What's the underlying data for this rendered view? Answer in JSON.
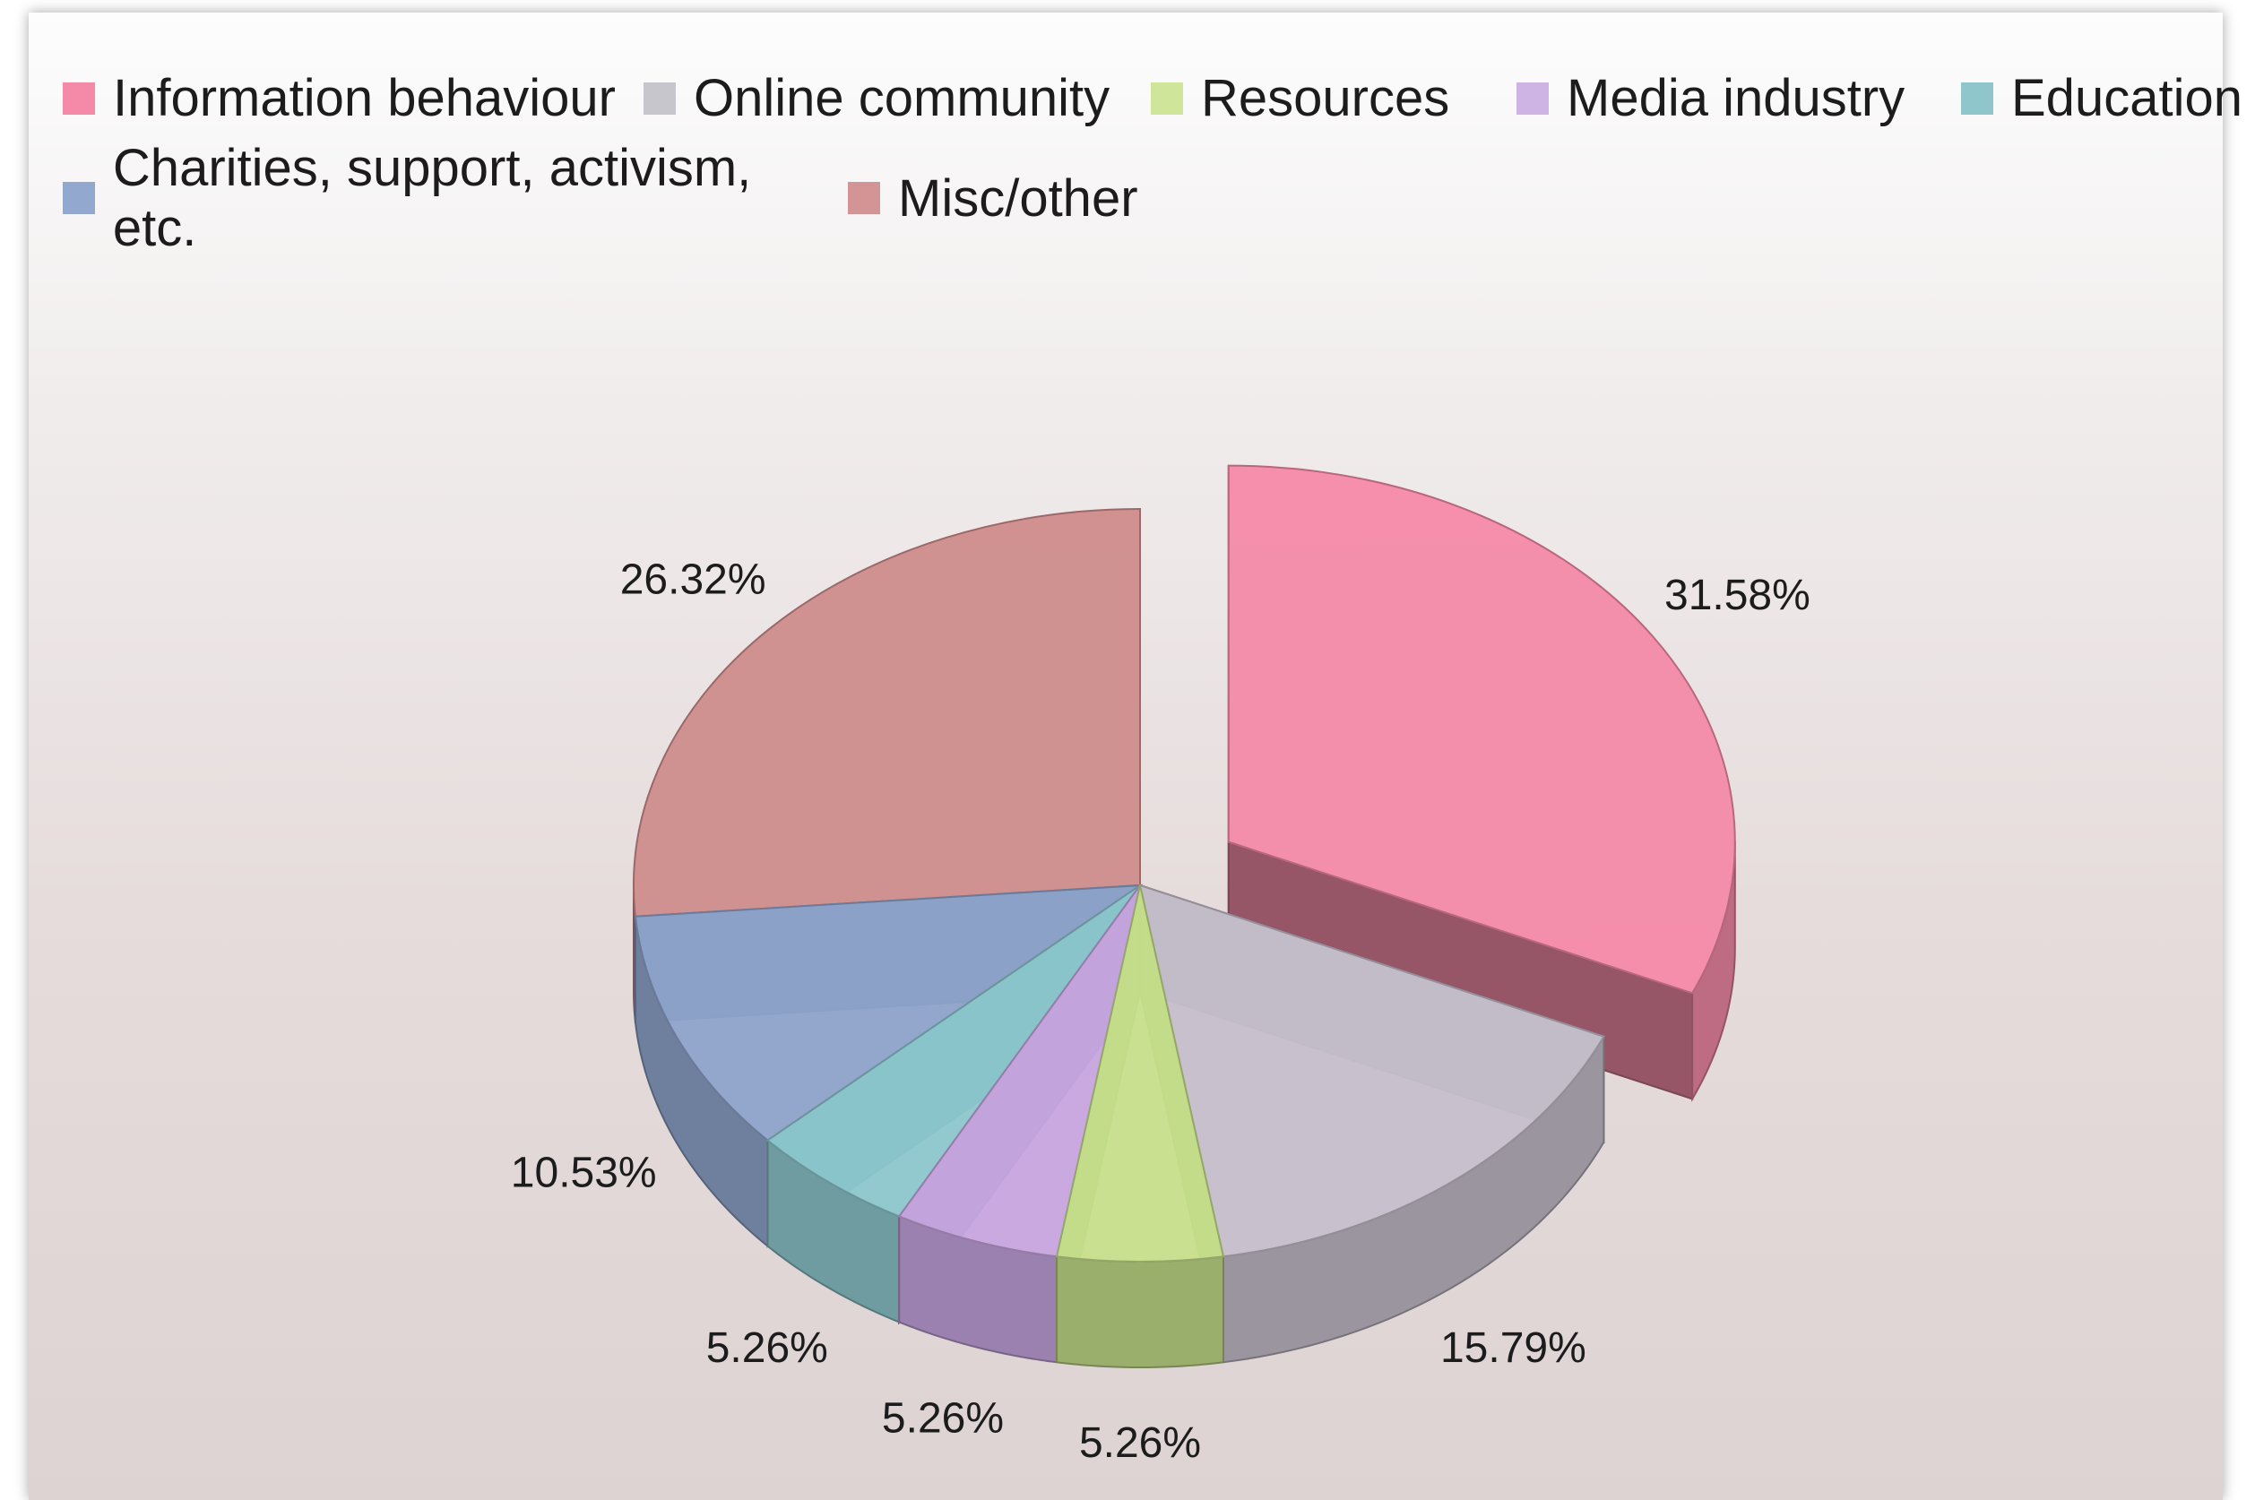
{
  "chart_data": {
    "type": "pie",
    "variant": "3d-exploded",
    "legend_placement": "top",
    "slices": [
      {
        "label": "Information behaviour",
        "value": 31.58,
        "label_text": "31.58%",
        "color": "#f48aa8",
        "exploded": true
      },
      {
        "label": "Online community",
        "value": 15.79,
        "label_text": "15.79%",
        "color": "#c6bfcc"
      },
      {
        "label": "Resources",
        "value": 5.26,
        "label_text": "5.26%",
        "color": "#c7e08c"
      },
      {
        "label": "Media industry",
        "value": 5.26,
        "label_text": "5.26%",
        "color": "#c7a6e0"
      },
      {
        "label": "Education",
        "value": 5.26,
        "label_text": "5.26%",
        "color": "#8dc8cf"
      },
      {
        "label": "Charities, support, activism, etc.",
        "value": 10.53,
        "label_text": "10.53%",
        "color": "#8ea4cc"
      },
      {
        "label": "Misc/other",
        "value": 26.32,
        "label_text": "26.32%",
        "color": "#cf8c8c"
      }
    ]
  },
  "legend": {
    "row1": [
      {
        "label": "Information behaviour",
        "color": "#f48aa8"
      },
      {
        "label": "Online community",
        "color": "#c6c6cc"
      },
      {
        "label": "Resources",
        "color": "#cfe59a"
      },
      {
        "label": "Media industry",
        "color": "#cdb4e4"
      },
      {
        "label": "Education",
        "color": "#8fc6cc"
      }
    ],
    "row2": [
      {
        "label": "Charities, support, activism, etc.",
        "color": "#92a8cf"
      },
      {
        "label": "Misc/other",
        "color": "#d29494"
      }
    ]
  }
}
